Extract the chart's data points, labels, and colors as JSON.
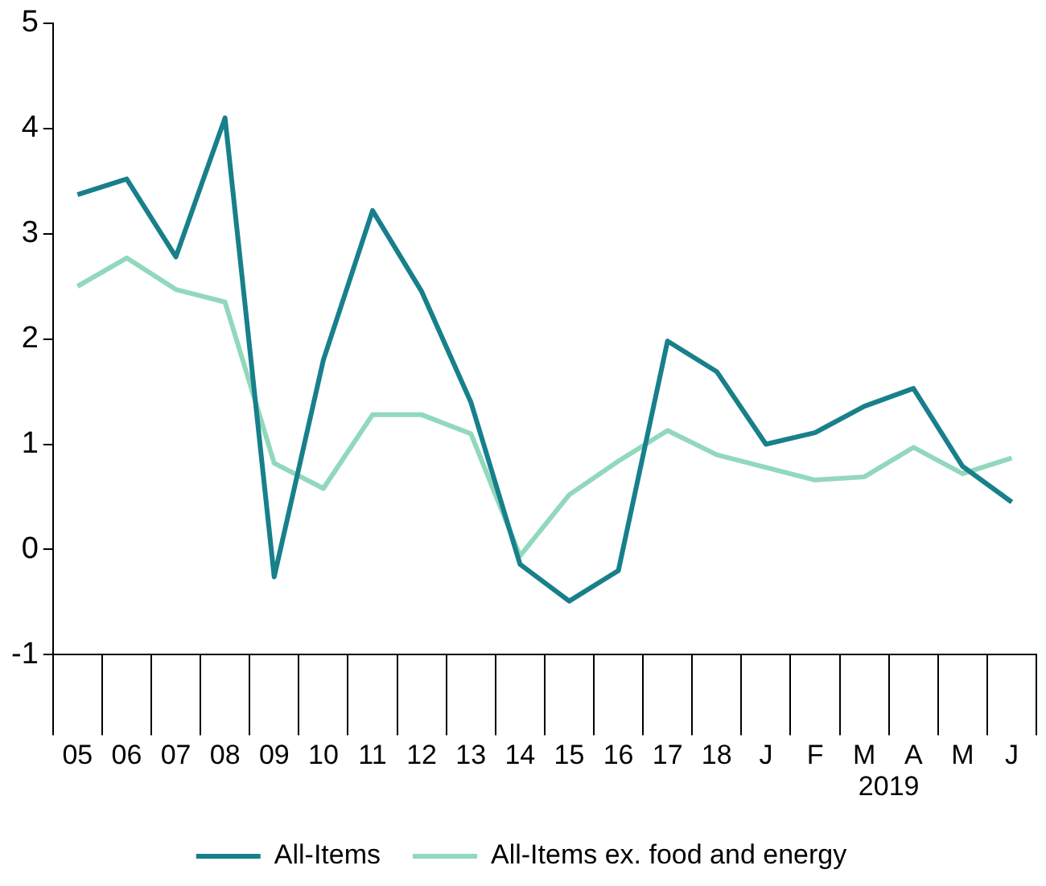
{
  "chart_data": {
    "type": "line",
    "categories": [
      "05",
      "06",
      "07",
      "08",
      "09",
      "10",
      "11",
      "12",
      "13",
      "14",
      "15",
      "16",
      "17",
      "18",
      "J",
      "F",
      "M",
      "A",
      "M",
      "J"
    ],
    "series": [
      {
        "name": "All-Items",
        "color": "#17808b",
        "values": [
          3.37,
          3.52,
          2.78,
          4.1,
          -0.26,
          1.8,
          3.22,
          2.45,
          1.4,
          -0.14,
          -0.49,
          -0.2,
          1.98,
          1.69,
          1.0,
          1.11,
          1.36,
          1.53,
          0.79,
          0.45
        ]
      },
      {
        "name": "All-Items ex. food and energy",
        "color": "#92d8bc",
        "values": [
          2.5,
          2.77,
          2.47,
          2.35,
          0.82,
          0.58,
          1.28,
          1.28,
          1.1,
          -0.06,
          0.52,
          0.84,
          1.13,
          0.9,
          0.78,
          0.66,
          0.69,
          0.97,
          0.72,
          0.87
        ]
      }
    ],
    "annotations": [
      "2019"
    ],
    "ylim": [
      -1,
      5
    ],
    "yticks": [
      -1,
      0,
      1,
      2,
      3,
      4,
      5
    ],
    "grid": false,
    "legend": "bottom",
    "marker": "none",
    "line_style": "solid"
  }
}
